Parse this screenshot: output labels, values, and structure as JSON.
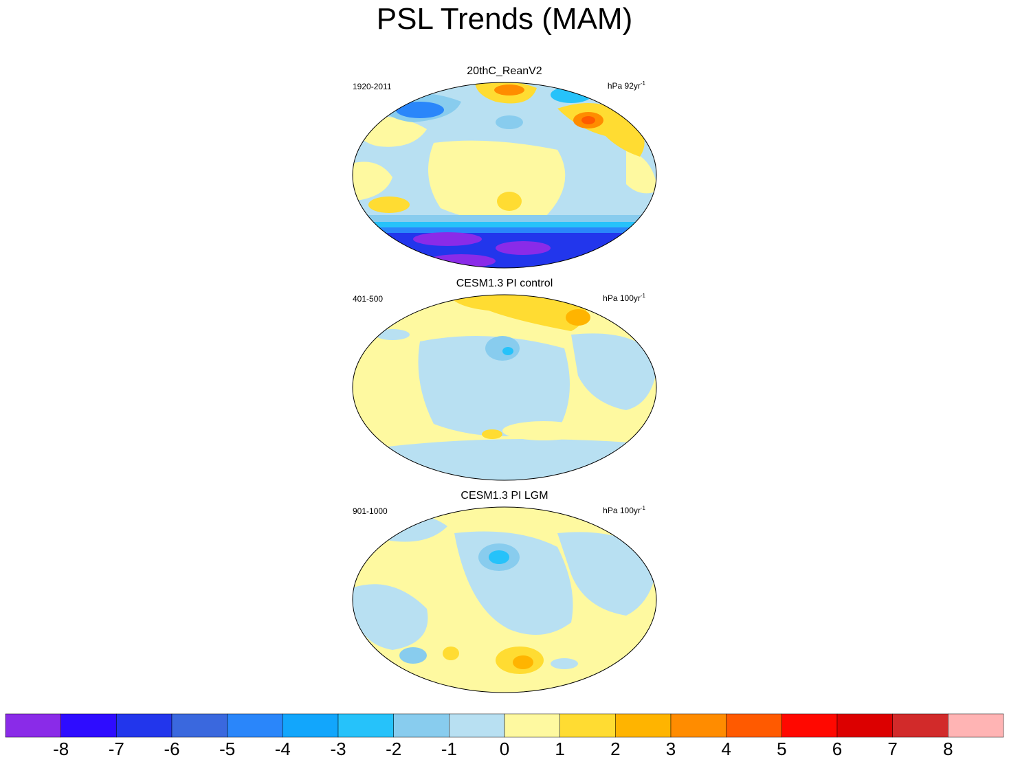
{
  "title": "PSL Trends (MAM)",
  "panels": [
    {
      "title": "20thC_ReanV2",
      "period": "1920-2011",
      "units_prefix": "hPa 92yr",
      "units_exp": "-1"
    },
    {
      "title": "CESM1.3 PI control",
      "period": "401-500",
      "units_prefix": "hPa 100yr",
      "units_exp": "-1"
    },
    {
      "title": "CESM1.3 PI LGM",
      "period": "901-1000",
      "units_prefix": "hPa 100yr",
      "units_exp": "-1"
    }
  ],
  "chart_data": {
    "type": "heatmap",
    "colorbar": {
      "levels": [
        -8,
        -7,
        -6,
        -5,
        -4,
        -3,
        -2,
        -1,
        0,
        1,
        2,
        3,
        4,
        5,
        6,
        7,
        8
      ],
      "tick_labels": [
        "-8",
        "-7",
        "-6",
        "-5",
        "-4",
        "-3",
        "-2",
        "-1",
        "0",
        "1",
        "2",
        "3",
        "4",
        "5",
        "6",
        "7",
        "8"
      ],
      "colors": [
        "#8a2be8",
        "#2e0cff",
        "#2236ec",
        "#3a68de",
        "#2a86fa",
        "#12a6fc",
        "#26c2fa",
        "#88ccee",
        "#b8e0f2",
        "#fef9a0",
        "#ffdc32",
        "#ffb400",
        "#ff8c00",
        "#ff5a00",
        "#ff0800",
        "#dc0000",
        "#d22a2a",
        "#ffb4b4"
      ]
    }
  }
}
